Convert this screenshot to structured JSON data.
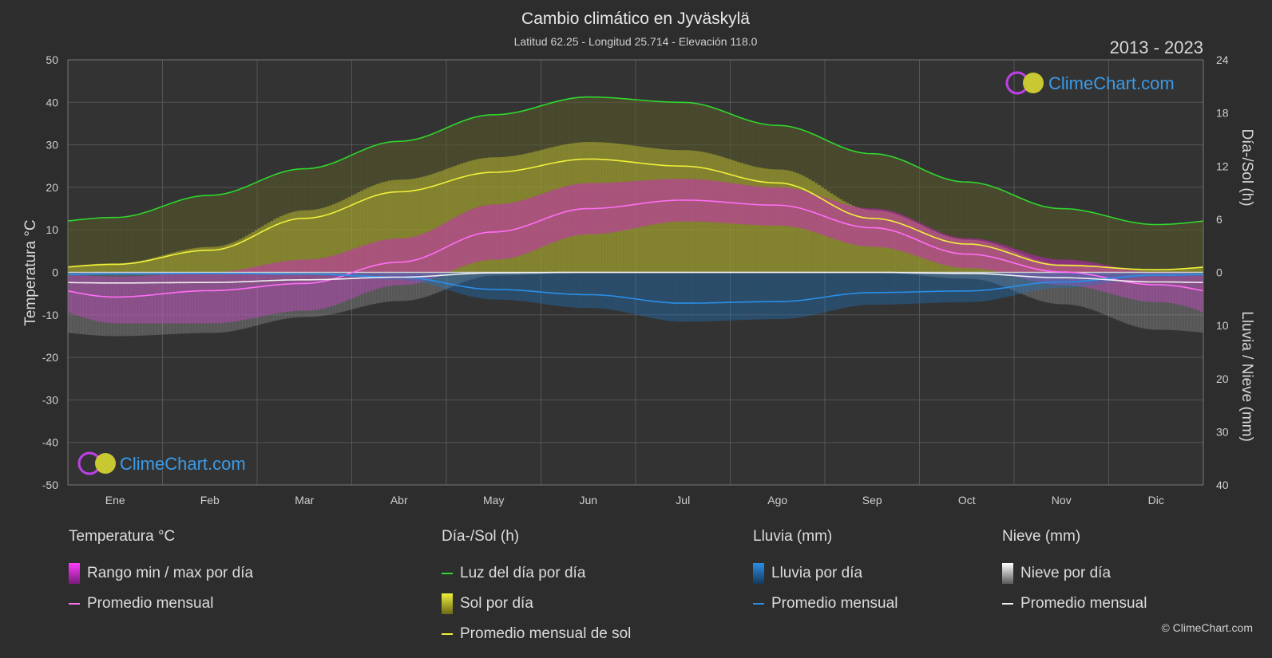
{
  "title": "Cambio climático en Jyväskylä",
  "subtitle": "Latitud 62.25 - Longitud 25.714 - Elevación 118.0",
  "period": "2013 - 2023",
  "logo_text": "ClimeChart.com",
  "copyright": "© ClimeChart.com",
  "colors": {
    "background": "#2d2d2d",
    "temp_range": "#d81bd8",
    "temp_avg": "#ff6ef5",
    "daylight": "#2ed82e",
    "sun_bars": "#c8c832",
    "sun_avg": "#f0f03a",
    "rain_bars": "#1e78c8",
    "rain_avg": "#2a8ee8",
    "snow_bars": "#9a9a9a",
    "snow_avg": "#f0f0f0"
  },
  "chart_data": {
    "type": "area",
    "x_categories": [
      "Ene",
      "Feb",
      "Mar",
      "Abr",
      "May",
      "Jun",
      "Jul",
      "Ago",
      "Sep",
      "Oct",
      "Nov",
      "Dic"
    ],
    "left_axis": {
      "label": "Temperatura °C",
      "range": [
        -50,
        50
      ],
      "ticks": [
        50,
        40,
        30,
        20,
        10,
        0,
        -10,
        -20,
        -30,
        -40,
        -50
      ]
    },
    "right_axis_top": {
      "label": "Día-/Sol (h)",
      "range": [
        0,
        24
      ],
      "ticks": [
        24,
        18,
        12,
        6,
        0
      ]
    },
    "right_axis_bottom": {
      "label": "Lluvia / Nieve (mm)",
      "range": [
        0,
        40
      ],
      "ticks": [
        0,
        10,
        20,
        30,
        40
      ]
    },
    "grid": true,
    "series": [
      {
        "name": "Luz del día por día",
        "unit": "h",
        "values": [
          6.2,
          8.7,
          11.7,
          14.8,
          17.8,
          19.8,
          19.2,
          16.6,
          13.4,
          10.2,
          7.2,
          5.4
        ]
      },
      {
        "name": "Promedio mensual de sol",
        "unit": "h",
        "values": [
          0.9,
          2.5,
          6.1,
          9.1,
          11.3,
          12.8,
          12.0,
          10.1,
          6.1,
          3.2,
          0.8,
          0.3
        ]
      },
      {
        "name": "Promedio mensual",
        "unit": "°C",
        "values": [
          -5.8,
          -4.3,
          -2.6,
          2.4,
          9.5,
          15.0,
          17.0,
          15.8,
          10.5,
          4.3,
          0.1,
          -2.9
        ]
      },
      {
        "name": "Rango min / max por día",
        "unit": "°C",
        "min": [
          -12,
          -12,
          -9,
          -3,
          3,
          9,
          12,
          11,
          6,
          1,
          -3,
          -7
        ],
        "max": [
          -1,
          0,
          3,
          8,
          16,
          21,
          22,
          20,
          15,
          8,
          3,
          0
        ]
      },
      {
        "name": "Lluvia promedio mensual",
        "unit": "mm",
        "values": [
          0.3,
          0.2,
          0.3,
          0.9,
          3.2,
          4.2,
          5.8,
          5.5,
          3.8,
          3.5,
          1.8,
          0.5
        ]
      },
      {
        "name": "Nieve promedio mensual",
        "unit": "mm",
        "values": [
          2.0,
          1.9,
          1.4,
          0.9,
          0.1,
          0.0,
          0.0,
          0.0,
          0.0,
          0.2,
          1.0,
          1.8
        ]
      }
    ]
  },
  "legend": {
    "temperature": {
      "heading": "Temperatura °C",
      "items": [
        "Rango min / max por día",
        "Promedio mensual"
      ]
    },
    "daylight": {
      "heading": "Día-/Sol (h)",
      "items": [
        "Luz del día por día",
        "Sol por día",
        "Promedio mensual de sol"
      ]
    },
    "rain": {
      "heading": "Lluvia (mm)",
      "items": [
        "Lluvia por día",
        "Promedio mensual"
      ]
    },
    "snow": {
      "heading": "Nieve (mm)",
      "items": [
        "Nieve por día",
        "Promedio mensual"
      ]
    }
  }
}
